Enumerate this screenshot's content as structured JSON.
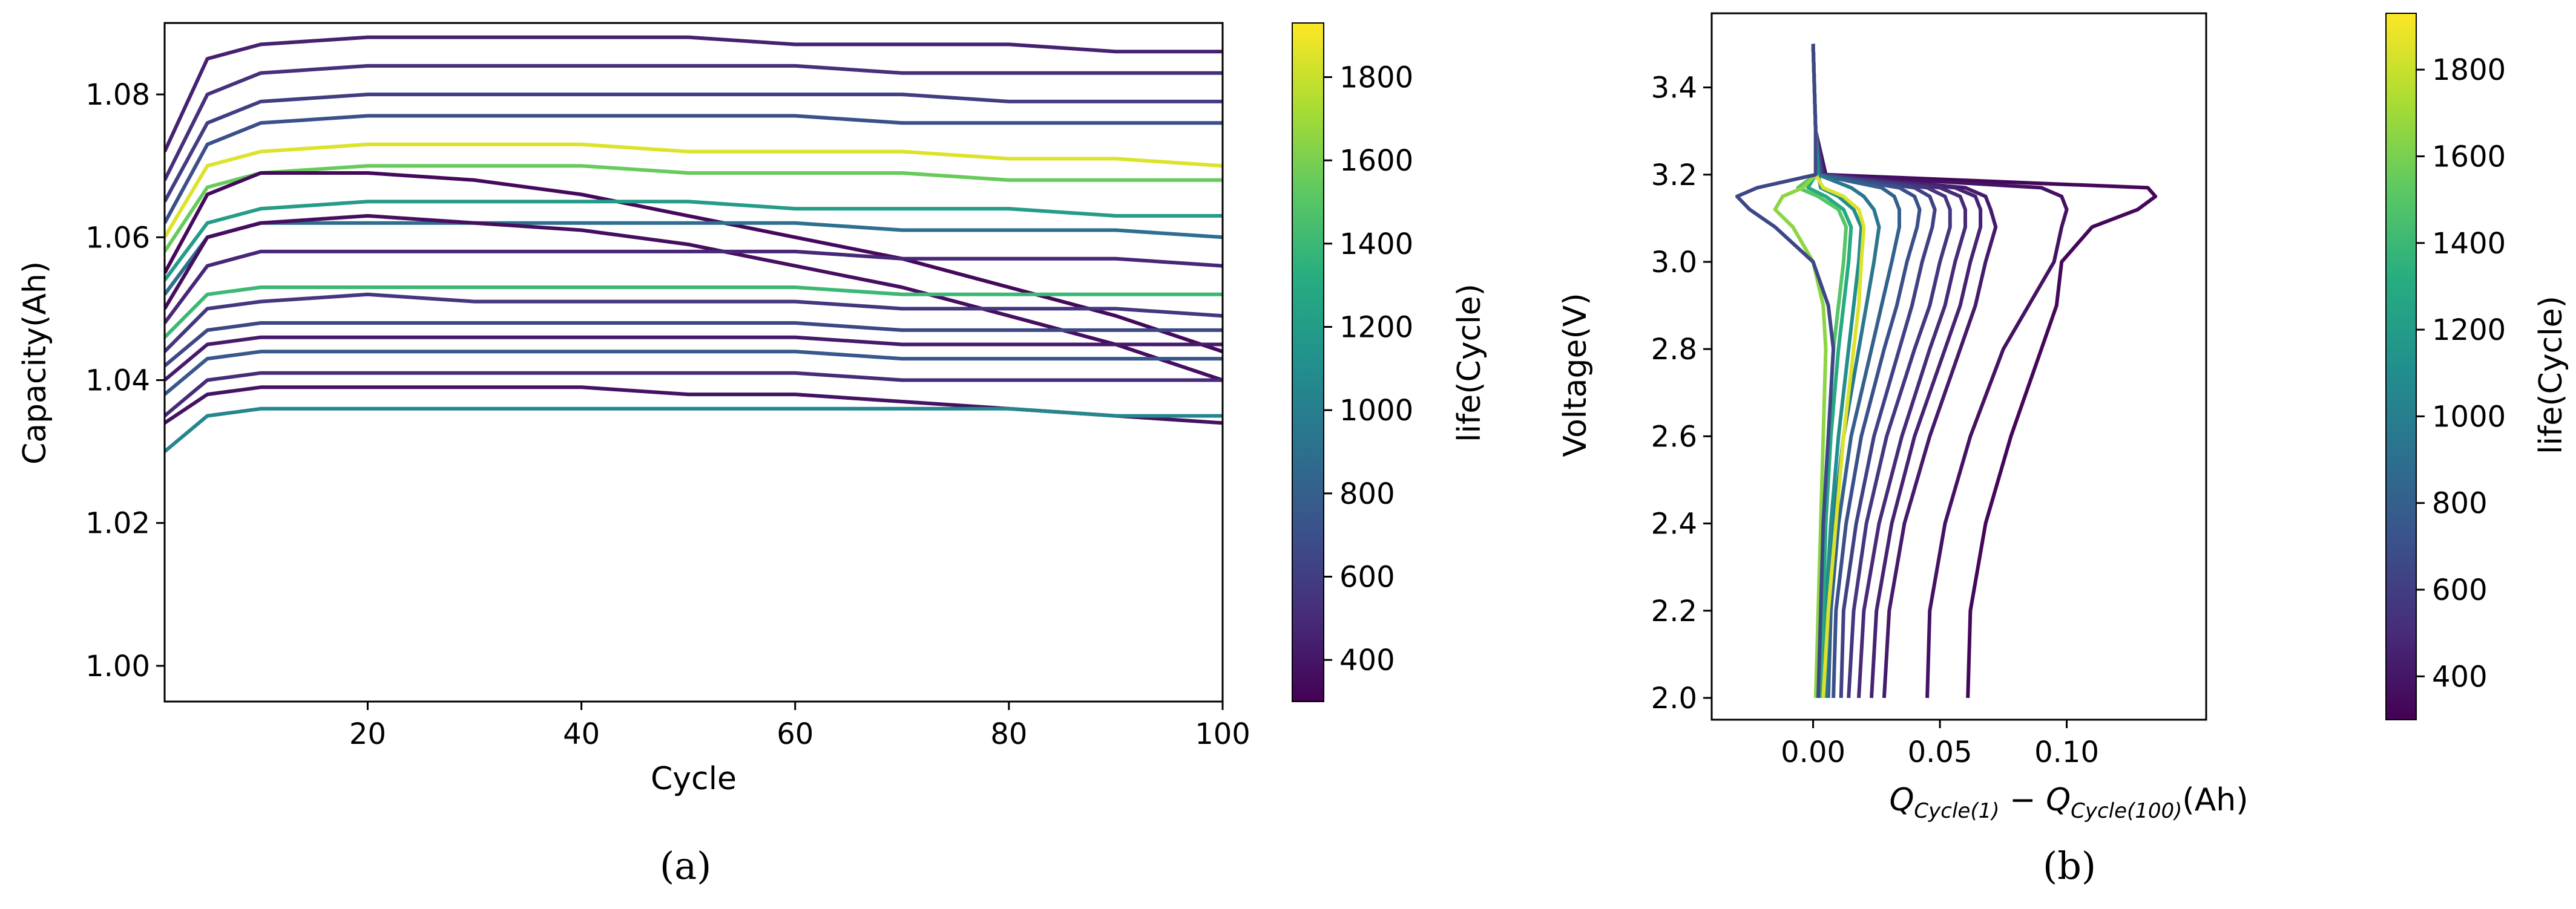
{
  "colormap": "viridis",
  "chart_data": [
    {
      "type": "line",
      "panel": "a",
      "xlabel": "Cycle",
      "ylabel": "Capacity(Ah)",
      "xlim": [
        1,
        100
      ],
      "ylim": [
        0.995,
        1.09
      ],
      "xticks": [
        20,
        40,
        60,
        80,
        100
      ],
      "yticks": [
        1.0,
        1.02,
        1.04,
        1.06,
        1.08
      ],
      "xtick_labels": [
        "20",
        "40",
        "60",
        "80",
        "100"
      ],
      "ytick_labels": [
        "1.00",
        "1.02",
        "1.04",
        "1.06",
        "1.08"
      ],
      "x": [
        1,
        5,
        10,
        20,
        30,
        40,
        50,
        60,
        70,
        80,
        90,
        100
      ],
      "colorbar": {
        "label": "life(Cycle)",
        "range": [
          300,
          1930
        ],
        "ticks": [
          400,
          600,
          800,
          1000,
          1200,
          1400,
          1600,
          1800
        ],
        "tick_labels": [
          "400",
          "600",
          "800",
          "1000",
          "1200",
          "1400",
          "1600",
          "1800"
        ]
      },
      "series": [
        {
          "life": 450,
          "values": [
            1.072,
            1.085,
            1.087,
            1.088,
            1.088,
            1.088,
            1.088,
            1.087,
            1.087,
            1.087,
            1.086,
            1.086
          ]
        },
        {
          "life": 520,
          "values": [
            1.068,
            1.08,
            1.083,
            1.084,
            1.084,
            1.084,
            1.084,
            1.084,
            1.083,
            1.083,
            1.083,
            1.083
          ]
        },
        {
          "life": 600,
          "values": [
            1.065,
            1.076,
            1.079,
            1.08,
            1.08,
            1.08,
            1.08,
            1.08,
            1.08,
            1.079,
            1.079,
            1.079
          ]
        },
        {
          "life": 700,
          "values": [
            1.062,
            1.073,
            1.076,
            1.077,
            1.077,
            1.077,
            1.077,
            1.077,
            1.076,
            1.076,
            1.076,
            1.076
          ]
        },
        {
          "life": 1850,
          "values": [
            1.06,
            1.07,
            1.072,
            1.073,
            1.073,
            1.073,
            1.072,
            1.072,
            1.072,
            1.071,
            1.071,
            1.07
          ]
        },
        {
          "life": 1550,
          "values": [
            1.058,
            1.067,
            1.069,
            1.07,
            1.07,
            1.07,
            1.069,
            1.069,
            1.069,
            1.068,
            1.068,
            1.068
          ]
        },
        {
          "life": 340,
          "values": [
            1.055,
            1.066,
            1.069,
            1.069,
            1.068,
            1.066,
            1.063,
            1.06,
            1.057,
            1.053,
            1.049,
            1.044
          ]
        },
        {
          "life": 1200,
          "values": [
            1.054,
            1.062,
            1.064,
            1.065,
            1.065,
            1.065,
            1.065,
            1.064,
            1.064,
            1.064,
            1.063,
            1.063
          ]
        },
        {
          "life": 900,
          "values": [
            1.052,
            1.06,
            1.062,
            1.062,
            1.062,
            1.062,
            1.062,
            1.062,
            1.061,
            1.061,
            1.061,
            1.06
          ]
        },
        {
          "life": 360,
          "values": [
            1.05,
            1.06,
            1.062,
            1.063,
            1.062,
            1.061,
            1.059,
            1.056,
            1.053,
            1.049,
            1.045,
            1.04
          ]
        },
        {
          "life": 480,
          "values": [
            1.048,
            1.056,
            1.058,
            1.058,
            1.058,
            1.058,
            1.058,
            1.058,
            1.057,
            1.057,
            1.057,
            1.056
          ]
        },
        {
          "life": 1400,
          "values": [
            1.046,
            1.052,
            1.053,
            1.053,
            1.053,
            1.053,
            1.053,
            1.053,
            1.052,
            1.052,
            1.052,
            1.052
          ]
        },
        {
          "life": 560,
          "values": [
            1.044,
            1.05,
            1.051,
            1.052,
            1.051,
            1.051,
            1.051,
            1.051,
            1.05,
            1.05,
            1.05,
            1.049
          ]
        },
        {
          "life": 650,
          "values": [
            1.042,
            1.047,
            1.048,
            1.048,
            1.048,
            1.048,
            1.048,
            1.048,
            1.047,
            1.047,
            1.047,
            1.047
          ]
        },
        {
          "life": 420,
          "values": [
            1.04,
            1.045,
            1.046,
            1.046,
            1.046,
            1.046,
            1.046,
            1.046,
            1.045,
            1.045,
            1.045,
            1.045
          ]
        },
        {
          "life": 750,
          "values": [
            1.038,
            1.043,
            1.044,
            1.044,
            1.044,
            1.044,
            1.044,
            1.044,
            1.043,
            1.043,
            1.043,
            1.043
          ]
        },
        {
          "life": 500,
          "values": [
            1.035,
            1.04,
            1.041,
            1.041,
            1.041,
            1.041,
            1.041,
            1.041,
            1.04,
            1.04,
            1.04,
            1.04
          ]
        },
        {
          "life": 380,
          "values": [
            1.034,
            1.038,
            1.039,
            1.039,
            1.039,
            1.039,
            1.038,
            1.038,
            1.037,
            1.036,
            1.035,
            1.034
          ]
        },
        {
          "life": 1050,
          "values": [
            1.03,
            1.035,
            1.036,
            1.036,
            1.036,
            1.036,
            1.036,
            1.036,
            1.036,
            1.036,
            1.035,
            1.035
          ]
        }
      ]
    },
    {
      "type": "line",
      "panel": "b",
      "xlabel_html": "Q<tspan font-style=\"italic\">Cycle</tspan>",
      "xlabel": "Q_Cycle(1) − Q_Cycle(100)(Ah)",
      "xlabel_parts": {
        "q1": "Q",
        "sub1": "Cycle(1)",
        "minus": " − ",
        "q2": "Q",
        "sub2": "Cycle(100)",
        "unit": "(Ah)"
      },
      "ylabel": "Voltage(V)",
      "xlim": [
        -0.04,
        0.155
      ],
      "ylim": [
        1.95,
        3.57
      ],
      "xticks": [
        0.0,
        0.05,
        0.1
      ],
      "yticks": [
        2.0,
        2.2,
        2.4,
        2.6,
        2.8,
        3.0,
        3.2,
        3.4
      ],
      "xtick_labels": [
        "0.00",
        "0.05",
        "0.10"
      ],
      "ytick_labels": [
        "2.0",
        "2.2",
        "2.4",
        "2.6",
        "2.8",
        "3.0",
        "3.2",
        "3.4"
      ],
      "y": [
        2.0,
        2.2,
        2.4,
        2.6,
        2.8,
        2.9,
        3.0,
        3.08,
        3.12,
        3.15,
        3.17,
        3.2,
        3.3,
        3.5
      ],
      "colorbar": {
        "label": "life(Cycle)",
        "range": [
          300,
          1930
        ],
        "ticks": [
          400,
          600,
          800,
          1000,
          1200,
          1400,
          1600,
          1800
        ],
        "tick_labels": [
          "400",
          "600",
          "800",
          "1000",
          "1200",
          "1400",
          "1600",
          "1800"
        ]
      },
      "series": [
        {
          "life": 330,
          "values": [
            0.061,
            0.062,
            0.068,
            0.078,
            0.09,
            0.096,
            0.098,
            0.11,
            0.128,
            0.135,
            0.132,
            0.005,
            0.001,
            0.0
          ]
        },
        {
          "life": 380,
          "values": [
            0.045,
            0.046,
            0.052,
            0.062,
            0.075,
            0.085,
            0.095,
            0.098,
            0.1,
            0.098,
            0.09,
            0.005,
            0.001,
            0.0
          ]
        },
        {
          "life": 420,
          "values": [
            0.028,
            0.03,
            0.036,
            0.046,
            0.058,
            0.064,
            0.068,
            0.072,
            0.07,
            0.068,
            0.06,
            0.004,
            0.001,
            0.0
          ]
        },
        {
          "life": 460,
          "values": [
            0.023,
            0.025,
            0.031,
            0.04,
            0.052,
            0.058,
            0.062,
            0.066,
            0.066,
            0.064,
            0.056,
            0.004,
            0.001,
            0.0
          ]
        },
        {
          "life": 500,
          "values": [
            0.018,
            0.02,
            0.026,
            0.035,
            0.046,
            0.052,
            0.056,
            0.06,
            0.06,
            0.058,
            0.05,
            0.004,
            0.001,
            0.0
          ]
        },
        {
          "life": 560,
          "values": [
            0.014,
            0.016,
            0.021,
            0.029,
            0.04,
            0.046,
            0.05,
            0.054,
            0.054,
            0.052,
            0.045,
            0.003,
            0.001,
            0.0
          ]
        },
        {
          "life": 620,
          "values": [
            0.011,
            0.012,
            0.017,
            0.024,
            0.034,
            0.039,
            0.043,
            0.047,
            0.048,
            0.046,
            0.04,
            0.003,
            0.001,
            0.0
          ]
        },
        {
          "life": 700,
          "values": [
            0.008,
            0.009,
            0.013,
            0.019,
            0.028,
            0.033,
            0.037,
            0.041,
            0.042,
            0.04,
            0.034,
            0.003,
            0.001,
            0.0
          ]
        },
        {
          "life": 800,
          "values": [
            0.006,
            0.007,
            0.01,
            0.015,
            0.023,
            0.027,
            0.031,
            0.034,
            0.034,
            0.032,
            0.027,
            0.002,
            0.001,
            0.0
          ]
        },
        {
          "life": 950,
          "values": [
            0.005,
            0.006,
            0.008,
            0.012,
            0.018,
            0.021,
            0.024,
            0.026,
            0.024,
            0.02,
            0.015,
            0.002,
            0.001,
            0.0
          ]
        },
        {
          "life": 1100,
          "values": [
            0.004,
            0.005,
            0.007,
            0.01,
            0.014,
            0.016,
            0.018,
            0.019,
            0.016,
            0.01,
            0.003,
            0.002,
            0.001,
            0.0
          ]
        },
        {
          "life": 1300,
          "values": [
            0.003,
            0.004,
            0.005,
            0.007,
            0.01,
            0.012,
            0.014,
            0.015,
            0.012,
            0.005,
            -0.002,
            0.001,
            0.001,
            0.0
          ]
        },
        {
          "life": 1500,
          "values": [
            0.002,
            0.003,
            0.004,
            0.006,
            0.008,
            0.01,
            0.012,
            0.013,
            0.01,
            0.002,
            -0.006,
            0.001,
            0.001,
            0.0
          ]
        },
        {
          "life": 1650,
          "values": [
            0.001,
            0.002,
            0.003,
            0.004,
            0.005,
            0.004,
            0.0,
            -0.008,
            -0.015,
            -0.012,
            -0.004,
            0.001,
            0.001,
            0.0
          ]
        },
        {
          "life": 1850,
          "values": [
            0.004,
            0.006,
            0.009,
            0.012,
            0.016,
            0.018,
            0.019,
            0.02,
            0.018,
            0.012,
            0.004,
            0.001,
            0.001,
            0.0
          ]
        },
        {
          "life": 650,
          "values": [
            0.002,
            0.003,
            0.004,
            0.006,
            0.008,
            0.006,
            0.0,
            -0.015,
            -0.025,
            -0.03,
            -0.022,
            0.001,
            0.001,
            0.0
          ]
        }
      ]
    }
  ],
  "panel_labels": [
    "(a)",
    "(b)"
  ]
}
